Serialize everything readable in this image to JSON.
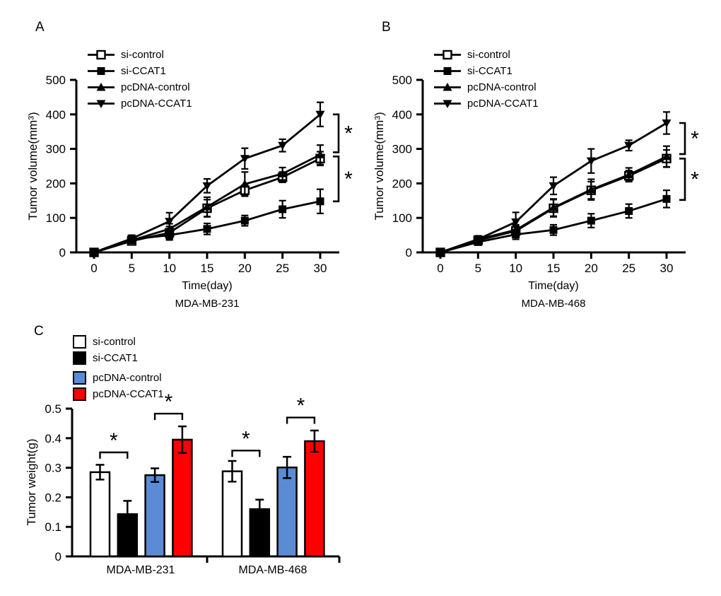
{
  "figure": {
    "background": "#ffffff",
    "panels": [
      {
        "letter": "A"
      },
      {
        "letter": "B"
      },
      {
        "letter": "C"
      }
    ]
  },
  "colors": {
    "line": "#000000",
    "bar_white": "#ffffff",
    "bar_black": "#000000",
    "bar_blue": "#5b8bd4",
    "bar_red": "#fe0000"
  },
  "chart_data": [
    {
      "panel": "A",
      "type": "line",
      "title": "MDA-MB-231",
      "xlabel": "Time(day)",
      "ylabel": "Tumor volume(mm³)",
      "xlim": [
        0,
        30
      ],
      "ylim": [
        0,
        500
      ],
      "x": [
        0,
        5,
        10,
        15,
        20,
        25,
        30
      ],
      "yticks": [
        0,
        100,
        200,
        300,
        400,
        500
      ],
      "grid": false,
      "legend_position": "inside-top-left",
      "series": [
        {
          "name": "si-control",
          "marker": "open-square",
          "color": "#000000",
          "values": [
            0,
            33,
            57,
            128,
            180,
            218,
            272
          ],
          "errors": [
            0,
            8,
            18,
            25,
            15,
            15,
            20
          ]
        },
        {
          "name": "si-CCAT1",
          "marker": "filled-square",
          "color": "#000000",
          "values": [
            0,
            38,
            50,
            68,
            92,
            125,
            148
          ],
          "errors": [
            0,
            10,
            14,
            16,
            15,
            25,
            35
          ]
        },
        {
          "name": "pcDNA-control",
          "marker": "triangle-up",
          "color": "#000000",
          "values": [
            0,
            35,
            68,
            132,
            198,
            228,
            283
          ],
          "errors": [
            0,
            8,
            15,
            28,
            35,
            18,
            28
          ]
        },
        {
          "name": "pcDNA-CCAT1",
          "marker": "triangle-down",
          "color": "#000000",
          "values": [
            0,
            40,
            90,
            193,
            272,
            310,
            400
          ],
          "errors": [
            0,
            10,
            25,
            20,
            30,
            18,
            35
          ]
        }
      ],
      "significance": [
        {
          "upper": 400,
          "lower": 290,
          "label": "*"
        },
        {
          "upper": 278,
          "lower": 148,
          "label": "*"
        }
      ]
    },
    {
      "panel": "B",
      "type": "line",
      "title": "MDA-MB-468",
      "xlabel": "Time(day)",
      "ylabel": "Tumor volume(mm³)",
      "xlim": [
        0,
        30
      ],
      "ylim": [
        0,
        500
      ],
      "x": [
        0,
        5,
        10,
        15,
        20,
        25,
        30
      ],
      "yticks": [
        0,
        100,
        200,
        300,
        400,
        500
      ],
      "grid": false,
      "legend_position": "inside-top-left",
      "series": [
        {
          "name": "si-control",
          "marker": "open-square",
          "color": "#000000",
          "values": [
            0,
            35,
            62,
            128,
            180,
            222,
            272
          ],
          "errors": [
            0,
            10,
            15,
            25,
            25,
            15,
            25
          ]
        },
        {
          "name": "si-CCAT1",
          "marker": "filled-square",
          "color": "#000000",
          "values": [
            0,
            30,
            52,
            65,
            92,
            120,
            155
          ],
          "errors": [
            0,
            8,
            14,
            15,
            20,
            20,
            25
          ]
        },
        {
          "name": "pcDNA-control",
          "marker": "triangle-up",
          "color": "#000000",
          "values": [
            0,
            38,
            65,
            130,
            182,
            225,
            278
          ],
          "errors": [
            0,
            10,
            15,
            25,
            30,
            20,
            30
          ]
        },
        {
          "name": "pcDNA-CCAT1",
          "marker": "triangle-down",
          "color": "#000000",
          "values": [
            0,
            38,
            88,
            193,
            265,
            310,
            375
          ],
          "errors": [
            0,
            10,
            28,
            25,
            35,
            15,
            32
          ]
        }
      ],
      "significance": [
        {
          "upper": 375,
          "lower": 285,
          "label": "*"
        },
        {
          "upper": 272,
          "lower": 152,
          "label": "*"
        }
      ]
    },
    {
      "panel": "C",
      "type": "bar",
      "title": "",
      "xlabel": "",
      "ylabel": "Tumor weight(g)",
      "ylim": [
        0,
        0.5
      ],
      "yticks": [
        0,
        0.1,
        0.2,
        0.3,
        0.4,
        0.5
      ],
      "grid": false,
      "legend_position": "above-top-left",
      "categories": [
        "MDA-MB-231",
        "MDA-MB-468"
      ],
      "series": [
        {
          "name": "si-control",
          "color": "#ffffff",
          "values": [
            0.285,
            0.288
          ],
          "errors": [
            0.025,
            0.035
          ]
        },
        {
          "name": "si-CCAT1",
          "color": "#000000",
          "values": [
            0.143,
            0.16
          ],
          "errors": [
            0.045,
            0.032
          ]
        },
        {
          "name": "pcDNA-control",
          "color": "#5b8bd4",
          "values": [
            0.275,
            0.301
          ],
          "errors": [
            0.023,
            0.036
          ]
        },
        {
          "name": "pcDNA-CCAT1",
          "color": "#fe0000",
          "values": [
            0.395,
            0.39
          ],
          "errors": [
            0.045,
            0.036
          ]
        }
      ],
      "significance": [
        {
          "group": 0,
          "pair": [
            0,
            1
          ],
          "y": 0.352,
          "label": "*"
        },
        {
          "group": 0,
          "pair": [
            2,
            3
          ],
          "y": 0.483,
          "label": "*"
        },
        {
          "group": 1,
          "pair": [
            0,
            1
          ],
          "y": 0.358,
          "label": "*"
        },
        {
          "group": 1,
          "pair": [
            2,
            3
          ],
          "y": 0.47,
          "label": "*"
        }
      ]
    }
  ]
}
